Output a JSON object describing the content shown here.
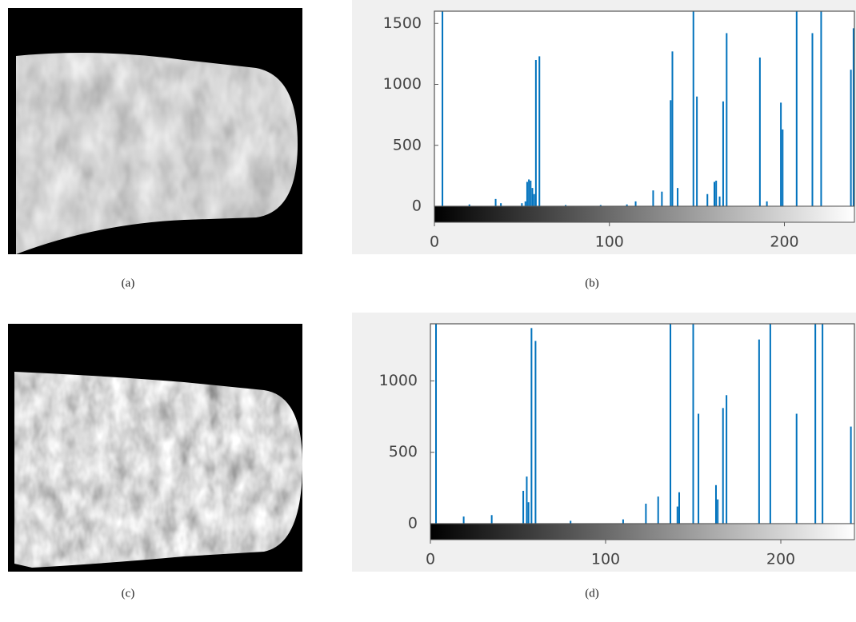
{
  "images": [
    {
      "caption": "(a)"
    },
    {
      "caption": "(c)"
    }
  ],
  "chart_data": [
    {
      "type": "bar",
      "caption": "(b)",
      "color": "#0072bd",
      "x": [
        4.6,
        20,
        35,
        38,
        50,
        52,
        53,
        54,
        55,
        56,
        57,
        58,
        60,
        75,
        95,
        110,
        115,
        125,
        130,
        135,
        136,
        139,
        148,
        150,
        156,
        160,
        161,
        163,
        165,
        167,
        186,
        190,
        198,
        199,
        207,
        216,
        221,
        238,
        239.5
      ],
      "values": [
        1600,
        15,
        60,
        25,
        25,
        40,
        200,
        220,
        210,
        150,
        100,
        1200,
        1230,
        10,
        10,
        15,
        40,
        130,
        120,
        870,
        1270,
        150,
        1600,
        900,
        100,
        200,
        210,
        80,
        860,
        1420,
        1220,
        40,
        850,
        630,
        1600,
        1420,
        1600,
        1120,
        1460
      ],
      "xlim": [
        0,
        240
      ],
      "ylim": [
        0,
        1600
      ],
      "xticks": [
        0,
        100,
        200
      ],
      "yticks": [
        0,
        500,
        1000,
        1500
      ]
    },
    {
      "type": "bar",
      "caption": "(d)",
      "color": "#0072bd",
      "x": [
        3.2,
        19,
        35,
        53,
        55,
        56,
        57.7,
        60,
        80,
        110,
        123,
        130,
        137,
        141,
        142,
        150,
        153,
        163,
        164,
        167,
        169,
        187.6,
        194,
        209,
        219.7,
        223.8,
        240
      ],
      "values": [
        1400,
        50,
        60,
        230,
        330,
        150,
        1370,
        1280,
        20,
        30,
        140,
        190,
        1400,
        120,
        220,
        1400,
        770,
        270,
        170,
        810,
        900,
        1290,
        1400,
        770,
        1400,
        1400,
        680
      ],
      "xlim": [
        0,
        242
      ],
      "ylim": [
        0,
        1400
      ],
      "xticks": [
        0,
        100,
        200
      ],
      "yticks": [
        0,
        500,
        1000
      ]
    }
  ]
}
